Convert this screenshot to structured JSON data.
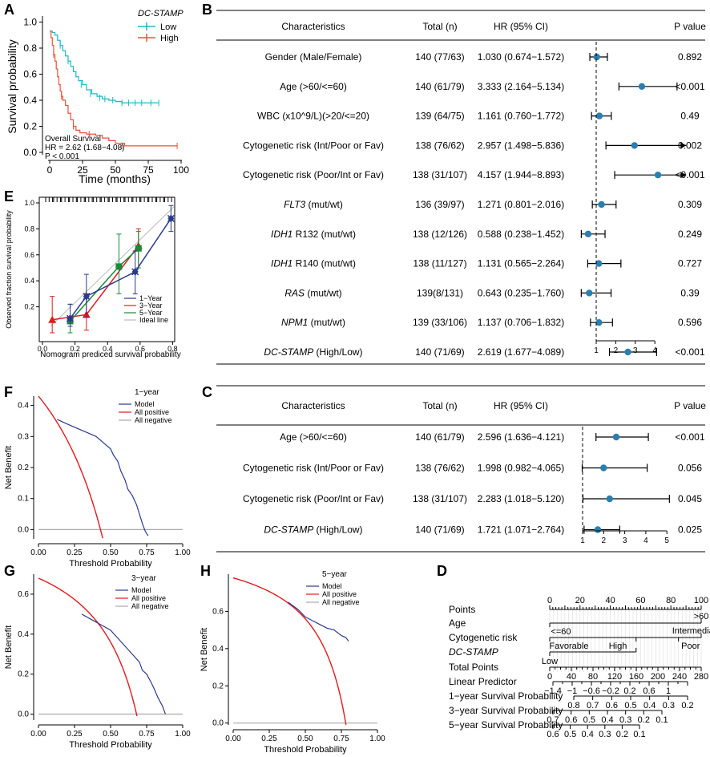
{
  "panels": {
    "A": "A",
    "B": "B",
    "C": "C",
    "D": "D",
    "E": "E",
    "F": "F",
    "G": "G",
    "H": "H"
  },
  "km": {
    "legend_title": "DC-STAMP",
    "legend": [
      "Low",
      "High"
    ],
    "ylabel": "Survival probability",
    "xlabel": "Time (months)",
    "xticks": [
      "0",
      "25",
      "50",
      "75",
      "100"
    ],
    "yticks": [
      "0.0",
      "0.2",
      "0.4",
      "0.6",
      "0.8",
      "1.0"
    ],
    "annot": [
      "Overall Survival",
      "HR = 2.62 (1.68−4.08)",
      "P < 0.001"
    ],
    "colors": {
      "low": "#1fb8c8",
      "high": "#e8533a"
    }
  },
  "forest_headers": {
    "char": "Characteristics",
    "total": "Total (n)",
    "hr": "HR (95% CI)",
    "p": "P value"
  },
  "forestB": {
    "rows": [
      {
        "pre": "",
        "it": "",
        "post": "Gender (Male/Female)",
        "total": "140 (77/63)",
        "hr": "1.030 (0.674−1.572)",
        "p": "0.892"
      },
      {
        "pre": "",
        "it": "",
        "post": "Age (>60/<=60)",
        "total": "140 (61/79)",
        "hr": "3.333 (2.164−5.134)",
        "p": "<0.001"
      },
      {
        "pre": "",
        "it": "",
        "post": "WBC (x10^9/L)(>20/<=20)",
        "total": "139 (64/75)",
        "hr": "1.161 (0.760−1.772)",
        "p": "0.49"
      },
      {
        "pre": "",
        "it": "",
        "post": "Cytogenetic risk (Int/Poor or Fav)",
        "total": "138 (76/62)",
        "hr": "2.957 (1.498−5.836)",
        "p": "0.002"
      },
      {
        "pre": "",
        "it": "",
        "post": "Cytogenetic risk (Poor/Int or Fav)",
        "total": "138 (31/107)",
        "hr": "4.157 (1.944−8.893)",
        "p": "<0.001"
      },
      {
        "pre": "",
        "it": "FLT3",
        "post": " (mut/wt)",
        "total": "136 (39/97)",
        "hr": "1.271 (0.801−2.016)",
        "p": "0.309"
      },
      {
        "pre": "",
        "it": "IDH1",
        "post": " R132 (mut/wt)",
        "total": "138 (12/126)",
        "hr": "0.588 (0.238−1.452)",
        "p": "0.249"
      },
      {
        "pre": "",
        "it": "IDH1",
        "post": " R140 (mut/wt)",
        "total": "138 (11/127)",
        "hr": "1.131 (0.565−2.264)",
        "p": "0.727"
      },
      {
        "pre": "",
        "it": "RAS",
        "post": " (mut/wt)",
        "total": "139(8/131)",
        "hr": "0.643 (0.235−1.760)",
        "p": "0.39"
      },
      {
        "pre": "",
        "it": "NPM1",
        "post": " (mut/wt)",
        "total": "139 (33/106)",
        "hr": "1.137 (0.706−1.832)",
        "p": "0.596"
      },
      {
        "pre": "",
        "it": "DC-STAMP",
        "post": " (High/Low)",
        "total": "140 (71/69)",
        "hr": "2.619 (1.677−4.089)",
        "p": "<0.001"
      }
    ],
    "est": [
      1.03,
      3.333,
      1.161,
      2.957,
      4.157,
      1.271,
      0.588,
      1.131,
      0.643,
      1.137,
      2.619
    ],
    "lo": [
      0.674,
      2.164,
      0.76,
      1.498,
      1.944,
      0.801,
      0.238,
      0.565,
      0.235,
      0.706,
      1.677
    ],
    "hi": [
      1.572,
      5.134,
      1.772,
      5.836,
      8.893,
      2.016,
      1.452,
      2.264,
      1.76,
      1.832,
      4.089
    ],
    "xticks": [
      "1",
      "2",
      "3",
      "4"
    ]
  },
  "forestC": {
    "rows": [
      {
        "pre": "",
        "it": "",
        "post": "Age (>60/<=60)",
        "total": "140 (61/79)",
        "hr": "2.596 (1.636−4.121)",
        "p": "<0.001"
      },
      {
        "pre": "",
        "it": "",
        "post": "Cytogenetic risk (Int/Poor or Fav)",
        "total": "138 (76/62)",
        "hr": "1.998 (0.982−4.065)",
        "p": "0.056"
      },
      {
        "pre": "",
        "it": "",
        "post": "Cytogenetic risk (Poor/Int or Fav)",
        "total": "138 (31/107)",
        "hr": "2.283 (1.018−5.120)",
        "p": "0.045"
      },
      {
        "pre": "",
        "it": "DC-STAMP",
        "post": " (High/Low)",
        "total": "140 (71/69)",
        "hr": "1.721 (1.071−2.764)",
        "p": "0.025"
      }
    ],
    "est": [
      2.596,
      1.998,
      2.283,
      1.721
    ],
    "lo": [
      1.636,
      0.982,
      1.018,
      1.071
    ],
    "hi": [
      4.121,
      4.065,
      5.12,
      2.764
    ],
    "xticks": [
      "1",
      "2",
      "3",
      "4",
      "5"
    ]
  },
  "calib": {
    "ylabel": "Observed fraction survival probability",
    "xlabel": "Nomogram prediced survival probability",
    "xticks": [
      "0.0",
      "0.2",
      "0.4",
      "0.6",
      "0.8"
    ],
    "yticks": [
      "0.2",
      "0.4",
      "0.6",
      "0.8",
      "1.0"
    ],
    "legend": [
      "1−Year",
      "3−Year",
      "5−Year",
      "Ideal line"
    ],
    "colors": [
      "#2b3a8f",
      "#e31a1c",
      "#1a8a3a",
      "#bbbbbb"
    ],
    "series": [
      {
        "x": [
          0.17,
          0.27,
          0.57,
          0.79
        ],
        "y": [
          0.11,
          0.28,
          0.47,
          0.88
        ],
        "lo": [
          0.05,
          0.12,
          0.3,
          0.78
        ],
        "hi": [
          0.22,
          0.45,
          0.63,
          0.98
        ]
      },
      {
        "x": [
          0.06,
          0.27,
          0.59
        ],
        "y": [
          0.1,
          0.14,
          0.67
        ],
        "lo": [
          0.0,
          0.02,
          0.5
        ],
        "hi": [
          0.28,
          0.3,
          0.8
        ]
      },
      {
        "x": [
          0.17,
          0.47,
          0.59
        ],
        "y": [
          0.09,
          0.51,
          0.65
        ],
        "lo": [
          0.0,
          0.3,
          0.5
        ],
        "hi": [
          0.22,
          0.76,
          0.78
        ]
      }
    ]
  },
  "dca": {
    "ylabel": "Net Benefit",
    "xlabel": "Threshold Probability",
    "xticks": [
      "0.00",
      "0.25",
      "0.50",
      "0.75",
      "1.00"
    ],
    "legend": [
      "Model",
      "All positive",
      "All negative"
    ],
    "F": {
      "title": "1−year",
      "yticks": [
        "0.0",
        "0.1",
        "0.2",
        "0.3",
        "0.4"
      ],
      "ymax": 0.43,
      "ymin": -0.03,
      "prev": 0.43,
      "model": [
        [
          0.13,
          0.355
        ],
        [
          0.2,
          0.34
        ],
        [
          0.3,
          0.32
        ],
        [
          0.4,
          0.3
        ],
        [
          0.45,
          0.28
        ],
        [
          0.5,
          0.26
        ],
        [
          0.52,
          0.24
        ],
        [
          0.55,
          0.22
        ],
        [
          0.57,
          0.19
        ],
        [
          0.6,
          0.16
        ],
        [
          0.62,
          0.13
        ],
        [
          0.65,
          0.11
        ],
        [
          0.68,
          0.08
        ],
        [
          0.7,
          0.05
        ],
        [
          0.72,
          0.02
        ],
        [
          0.74,
          -0.005
        ],
        [
          0.76,
          -0.02
        ]
      ]
    },
    "G": {
      "title": "3−year",
      "yticks": [
        "0.0",
        "0.2",
        "0.4",
        "0.6"
      ],
      "ymax": 0.7,
      "ymin": -0.03,
      "prev": 0.68,
      "model": [
        [
          0.3,
          0.5
        ],
        [
          0.4,
          0.46
        ],
        [
          0.5,
          0.42
        ],
        [
          0.55,
          0.38
        ],
        [
          0.6,
          0.34
        ],
        [
          0.65,
          0.3
        ],
        [
          0.7,
          0.26
        ],
        [
          0.72,
          0.22
        ],
        [
          0.75,
          0.2
        ],
        [
          0.78,
          0.16
        ],
        [
          0.8,
          0.13
        ],
        [
          0.83,
          0.08
        ],
        [
          0.86,
          0.04
        ],
        [
          0.88,
          0.0
        ]
      ]
    },
    "H": {
      "title": "5−year",
      "yticks": [
        "0.0",
        "0.2",
        "0.4",
        "0.6"
      ],
      "ymax": 0.8,
      "ymin": -0.01,
      "prev": 0.78,
      "model": [
        [
          0.38,
          0.65
        ],
        [
          0.45,
          0.61
        ],
        [
          0.5,
          0.57
        ],
        [
          0.55,
          0.55
        ],
        [
          0.6,
          0.53
        ],
        [
          0.65,
          0.51
        ],
        [
          0.7,
          0.5
        ],
        [
          0.75,
          0.47
        ],
        [
          0.78,
          0.46
        ],
        [
          0.8,
          0.44
        ]
      ]
    }
  },
  "nomogram": {
    "labels": [
      "Points",
      "Age",
      "Cytogenetic risk",
      "DC-STAMP",
      "Total Points",
      "Linear Predictor",
      "1−year Survival Probability",
      "3−year Survival Probability",
      "5−year Survival Probability"
    ],
    "points_ticks": [
      "0",
      "20",
      "40",
      "60",
      "80",
      "100"
    ],
    "age": [
      "<=60",
      ">60"
    ],
    "cyto": [
      "Favorable",
      "Intermediate",
      "Poor"
    ],
    "dc": [
      "Low",
      "High"
    ],
    "total_ticks": [
      "0",
      "40",
      "80",
      "120",
      "160",
      "200",
      "240",
      "280"
    ],
    "lp_ticks": [
      "−1.4",
      "−1",
      "−0.6",
      "−0.2",
      "0.2",
      "0.6",
      "1"
    ],
    "s1_ticks": [
      "0.8",
      "0.7",
      "0.6",
      "0.5",
      "0.4",
      "0.3",
      "0.2"
    ],
    "s3_ticks": [
      "0.7",
      "0.6",
      "0.5",
      "0.4",
      "0.3",
      "0.2",
      "0.1"
    ],
    "s5_ticks": [
      "0.6",
      "0.5",
      "0.4",
      "0.3",
      "0.2",
      "0.1"
    ]
  }
}
